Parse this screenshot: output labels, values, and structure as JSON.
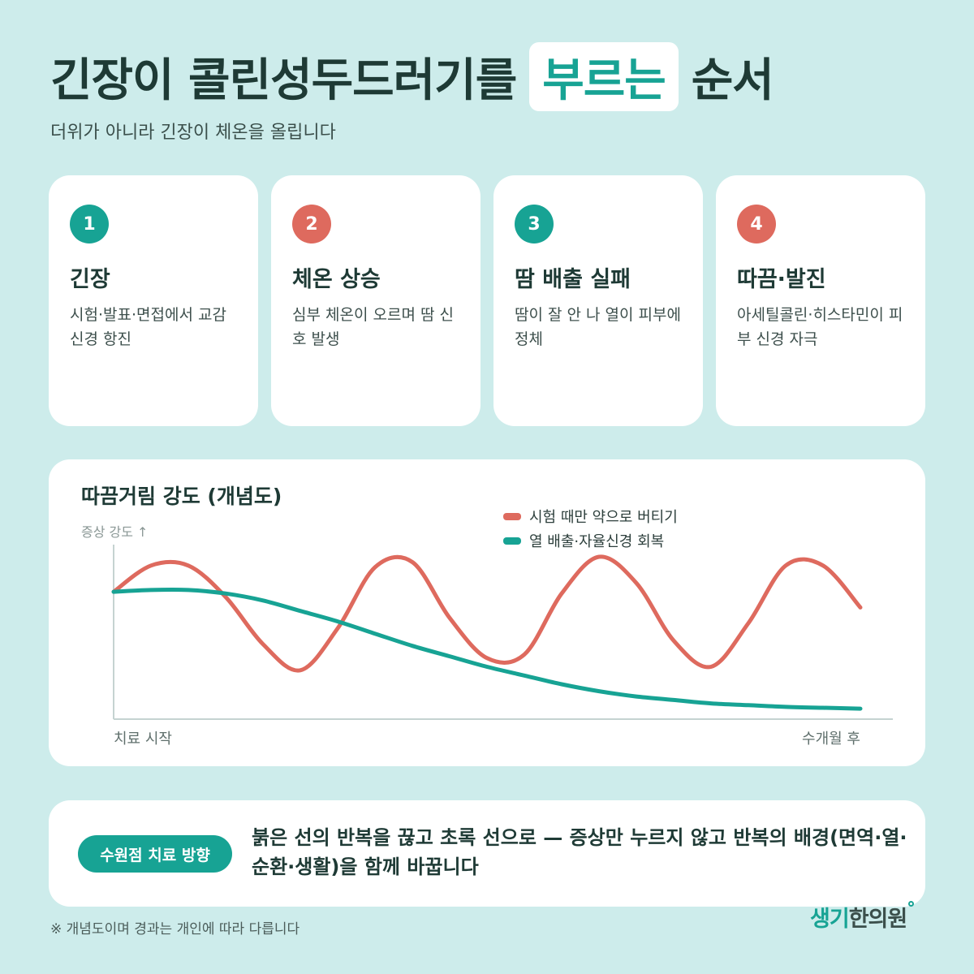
{
  "header": {
    "title_part1": "긴장이 콜린성두드러기를",
    "title_highlight": "부르는",
    "title_part2": "순서",
    "subtitle": "더위가 아니라 긴장이 체온을 올립니다"
  },
  "steps": [
    {
      "number": "1",
      "title": "긴장",
      "desc": "시험·발표·면접에서 교감신경 항진",
      "color": "teal"
    },
    {
      "number": "2",
      "title": "체온 상승",
      "desc": "심부 체온이 오르며 땀 신호 발생",
      "color": "red"
    },
    {
      "number": "3",
      "title": "땀 배출 실패",
      "desc": "땀이 잘 안 나 열이 피부에 정체",
      "color": "teal"
    },
    {
      "number": "4",
      "title": "따끔·발진",
      "desc": "아세틸콜린·히스타민이 피부 신경 자극",
      "color": "red"
    }
  ],
  "colors": {
    "teal": "#17a394",
    "red": "#de6a5e",
    "background": "#cdeceb"
  },
  "chart_data": {
    "type": "line",
    "title": "따끔거림 강도 (개념도)",
    "ylabel": "증상 강도 ↑",
    "x_start_label": "치료 시작",
    "x_end_label": "수개월 후",
    "legend_position": "top-right",
    "grid": false,
    "ylim": [
      0,
      1
    ],
    "x": [
      0,
      0.05,
      0.1,
      0.15,
      0.2,
      0.25,
      0.3,
      0.35,
      0.4,
      0.45,
      0.5,
      0.55,
      0.6,
      0.65,
      0.7,
      0.75,
      0.8,
      0.85,
      0.9,
      0.95,
      1.0
    ],
    "series": [
      {
        "name": "시험 때만 약으로 버티기",
        "color": "#de6a5e",
        "values": [
          0.73,
          0.88,
          0.88,
          0.7,
          0.43,
          0.28,
          0.52,
          0.87,
          0.9,
          0.58,
          0.35,
          0.37,
          0.72,
          0.93,
          0.78,
          0.45,
          0.3,
          0.55,
          0.88,
          0.88,
          0.64
        ]
      },
      {
        "name": "열 배출·자율신경 회복",
        "color": "#17a394",
        "values": [
          0.73,
          0.74,
          0.74,
          0.72,
          0.68,
          0.62,
          0.56,
          0.49,
          0.42,
          0.36,
          0.3,
          0.25,
          0.2,
          0.16,
          0.13,
          0.11,
          0.09,
          0.08,
          0.07,
          0.065,
          0.06
        ]
      }
    ]
  },
  "direction": {
    "label": "수원점 치료 방향",
    "text": "붉은 선의 반복을 끊고 초록 선으로 — 증상만 누르지 않고 반복의 배경(면역·열·순환·생활)을 함께 바꿉니다"
  },
  "footnote": "※ 개념도이며 경과는 개인에 따라 다릅니다",
  "logo": {
    "part1": "생기",
    "part2": "한의원"
  }
}
